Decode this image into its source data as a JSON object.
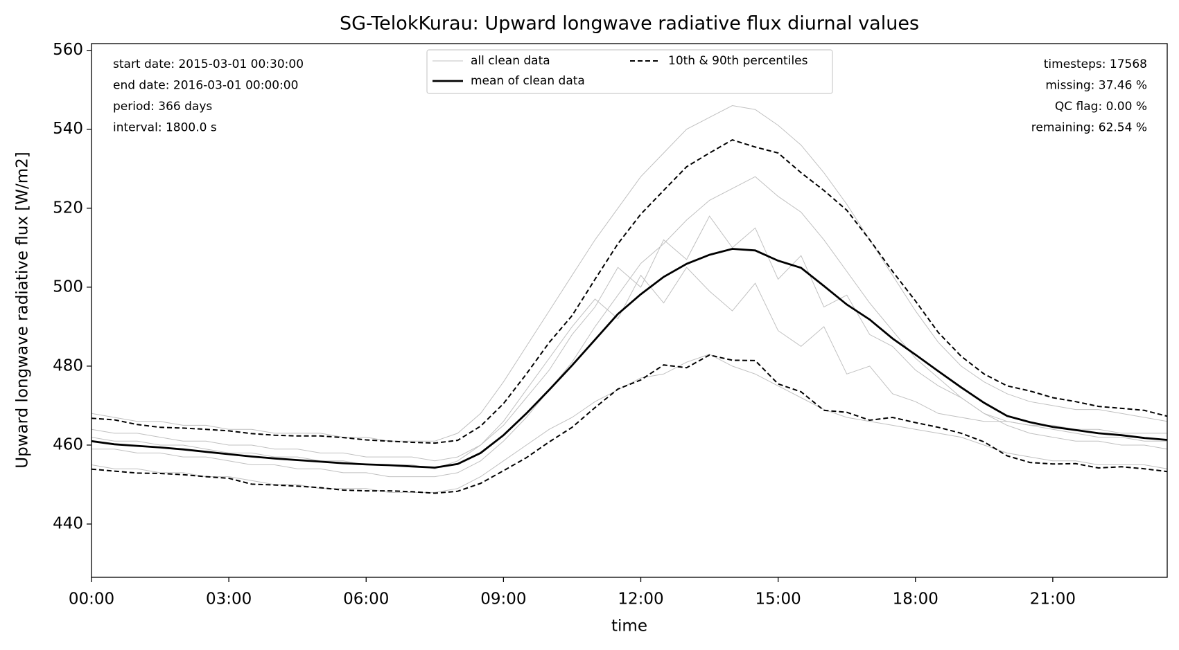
{
  "chart_data": {
    "type": "line",
    "title": "SG-TelokKurau: Upward longwave radiative flux diurnal values",
    "xlabel": "time",
    "ylabel": "Upward longwave radiative flux [W/m2]",
    "annotations_left": [
      "start date: 2015-03-01 00:30:00",
      "end date: 2016-03-01 00:00:00",
      "period: 366 days",
      "interval: 1800.0 s"
    ],
    "annotations_right": [
      "timesteps: 17568",
      "missing: 37.46 %",
      "QC flag: 0.00 %",
      "remaining: 62.54 %"
    ],
    "x": [
      0,
      0.5,
      1,
      1.5,
      2,
      2.5,
      3,
      3.5,
      4,
      4.5,
      5,
      5.5,
      6,
      6.5,
      7,
      7.5,
      8,
      8.5,
      9,
      9.5,
      10,
      10.5,
      11,
      11.5,
      12,
      12.5,
      13,
      13.5,
      14,
      14.5,
      15,
      15.5,
      16,
      16.5,
      17,
      17.5,
      18,
      18.5,
      19,
      19.5,
      20,
      20.5,
      21,
      21.5,
      22,
      22.5,
      23,
      23.5
    ],
    "xlim": [
      0,
      23.5
    ],
    "xticks": [
      {
        "value": 0,
        "label": "00:00"
      },
      {
        "value": 3,
        "label": "03:00"
      },
      {
        "value": 6,
        "label": "06:00"
      },
      {
        "value": 9,
        "label": "09:00"
      },
      {
        "value": 12,
        "label": "12:00"
      },
      {
        "value": 15,
        "label": "15:00"
      },
      {
        "value": 18,
        "label": "18:00"
      },
      {
        "value": 21,
        "label": "21:00"
      }
    ],
    "ylim": [
      426.5,
      561.7
    ],
    "yticks": [
      440,
      460,
      480,
      500,
      520,
      540,
      560
    ],
    "series": [
      {
        "name": "all clean data",
        "color": "#c0c0c0",
        "lines": [
          [
            468,
            467,
            466,
            466,
            465,
            465,
            464,
            464,
            463,
            463,
            463,
            462,
            462,
            461,
            461,
            461,
            463,
            468,
            476,
            485,
            494,
            503,
            512,
            520,
            528,
            534,
            540,
            543,
            546,
            545,
            541,
            536,
            529,
            521,
            512,
            503,
            494,
            486,
            480,
            476,
            473,
            471,
            470,
            469,
            469,
            468,
            467,
            466
          ],
          [
            455,
            454,
            454,
            453,
            453,
            452,
            452,
            451,
            450,
            450,
            449,
            449,
            449,
            448,
            448,
            448,
            449,
            452,
            456,
            460,
            464,
            467,
            471,
            474,
            477,
            478,
            481,
            483,
            480,
            478,
            475,
            472,
            469,
            467,
            466,
            465,
            464,
            463,
            462,
            460,
            458,
            457,
            456,
            456,
            455,
            455,
            455,
            454
          ],
          [
            462,
            461,
            461,
            460,
            460,
            459,
            458,
            458,
            457,
            457,
            456,
            456,
            455,
            455,
            455,
            454,
            456,
            460,
            465,
            472,
            479,
            488,
            495,
            505,
            500,
            512,
            507,
            518,
            510,
            515,
            502,
            508,
            495,
            498,
            488,
            485,
            479,
            475,
            472,
            468,
            466,
            465,
            464,
            463,
            462,
            462,
            461,
            461
          ],
          [
            459,
            459,
            458,
            458,
            457,
            457,
            456,
            455,
            455,
            454,
            454,
            453,
            453,
            452,
            452,
            452,
            453,
            456,
            461,
            467,
            474,
            481,
            490,
            498,
            506,
            511,
            517,
            522,
            525,
            528,
            523,
            519,
            512,
            504,
            496,
            489,
            482,
            477,
            472,
            468,
            465,
            463,
            462,
            461,
            461,
            460,
            460,
            459
          ],
          [
            464,
            463,
            463,
            462,
            461,
            461,
            460,
            460,
            459,
            459,
            458,
            458,
            457,
            457,
            457,
            456,
            457,
            460,
            466,
            474,
            482,
            490,
            497,
            492,
            503,
            496,
            505,
            499,
            494,
            501,
            489,
            485,
            490,
            478,
            480,
            473,
            471,
            468,
            467,
            466,
            466,
            465,
            465,
            464,
            464,
            463,
            463,
            463
          ]
        ]
      },
      {
        "name": "mean of clean data",
        "color": "#000000",
        "values": [
          461,
          460.2,
          459.8,
          459.4,
          458.9,
          458.3,
          457.7,
          457.1,
          456.6,
          456.2,
          455.8,
          455.4,
          455.1,
          454.9,
          454.6,
          454.3,
          455.2,
          458,
          462.5,
          468,
          474,
          480.2,
          486.7,
          493.2,
          498.2,
          502.6,
          505.9,
          508.2,
          509.7,
          509.3,
          506.7,
          504.9,
          500.3,
          495.6,
          491.8,
          487,
          482.9,
          478.7,
          474.6,
          470.7,
          467.4,
          465.8,
          464.6,
          463.8,
          463,
          462.5,
          461.8,
          461.3
        ]
      },
      {
        "name": "10th & 90th percentiles",
        "color": "#000000",
        "dashed": true,
        "values": [
          466.8,
          466.4,
          465.2,
          464.5,
          464.3,
          464,
          463.6,
          462.9,
          462.5,
          462.3,
          462.3,
          461.9,
          461.3,
          461,
          460.7,
          460.5,
          461.2,
          464.8,
          470.5,
          478,
          486,
          492.8,
          502,
          511,
          518.5,
          524.5,
          530.5,
          534,
          537.3,
          535.5,
          534,
          529,
          524.5,
          519.5,
          512,
          504,
          496.5,
          488.5,
          482.5,
          478,
          475,
          473.7,
          472,
          471,
          469.8,
          469.3,
          468.8,
          467.3
        ]
      },
      {
        "color": "#000000",
        "dashed": true,
        "values": [
          453.9,
          453.4,
          452.9,
          452.8,
          452.5,
          452,
          451.6,
          450.1,
          449.9,
          449.6,
          449.2,
          448.6,
          448.4,
          448.4,
          448.2,
          447.8,
          448.3,
          450.3,
          453.5,
          456.8,
          460.8,
          464.5,
          469.5,
          474.2,
          476.5,
          480.3,
          479.6,
          482.8,
          481.5,
          481.4,
          475.5,
          473.5,
          468.8,
          468.3,
          466.3,
          467,
          465.7,
          464.5,
          463,
          460.8,
          457.3,
          455.6,
          455.2,
          455.3,
          454.2,
          454.5,
          454,
          453.3
        ]
      }
    ]
  }
}
